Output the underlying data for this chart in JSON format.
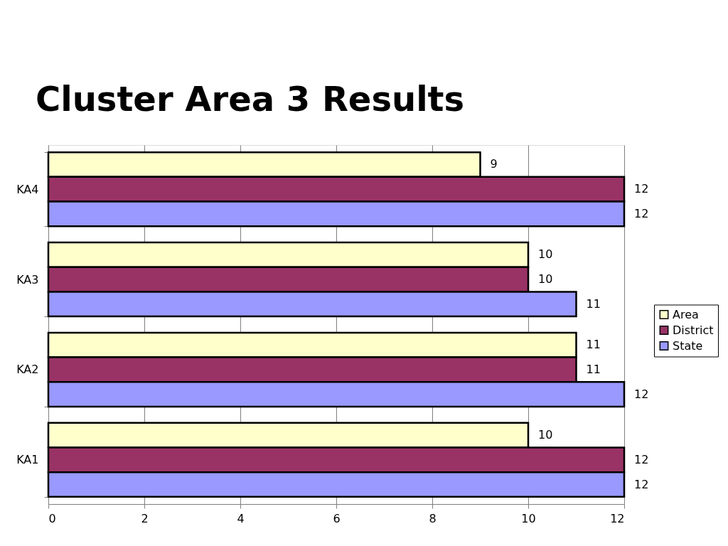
{
  "chart_data": {
    "type": "bar",
    "orientation": "horizontal",
    "title": "Cluster Area 3 Results",
    "categories": [
      "KA4",
      "KA3",
      "KA2",
      "KA1"
    ],
    "series": [
      {
        "name": "Area",
        "color": "#ffffcc",
        "values": [
          9,
          10,
          11,
          10
        ]
      },
      {
        "name": "District",
        "color": "#993366",
        "values": [
          12,
          10,
          11,
          12
        ]
      },
      {
        "name": "State",
        "color": "#9999ff",
        "values": [
          12,
          11,
          12,
          12
        ]
      }
    ],
    "xlim": [
      0,
      12
    ],
    "xticks": [
      0,
      2,
      4,
      6,
      8,
      10,
      12
    ],
    "grid": "x",
    "legend": "right",
    "data_labels": true
  }
}
